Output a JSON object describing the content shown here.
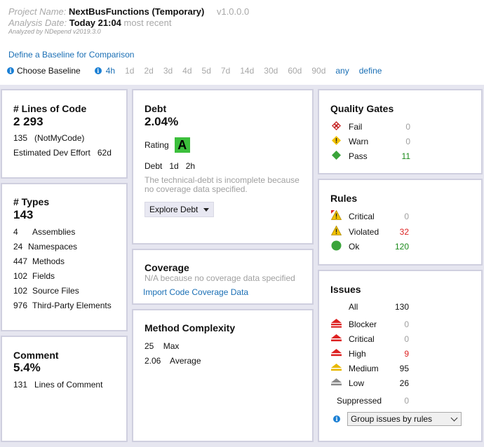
{
  "header": {
    "project_label": "Project Name:",
    "project_name": "NextBusFunctions (Temporary)",
    "version": "v1.0.0.0",
    "date_label": "Analysis Date:",
    "date_value": "Today 21:04",
    "date_suffix": "most recent",
    "analyzed_by": "Analyzed by NDepend v2019.3.0",
    "baseline_link": "Define a Baseline for Comparison",
    "choose_baseline": "Choose Baseline",
    "periods": [
      "4h",
      "1d",
      "2d",
      "3d",
      "4d",
      "5d",
      "7d",
      "14d",
      "30d",
      "60d",
      "90d",
      "any",
      "define"
    ]
  },
  "loc": {
    "title": "# Lines of Code",
    "value": "2 293",
    "notmycode_count": "135",
    "notmycode_label": "(NotMyCode)",
    "effort_label": "Estimated Dev Effort",
    "effort_value": "62d"
  },
  "types": {
    "title": "# Types",
    "value": "143",
    "items": [
      {
        "count": "4",
        "label": "Assemblies"
      },
      {
        "count": "24",
        "label": "Namespaces"
      },
      {
        "count": "447",
        "label": "Methods"
      },
      {
        "count": "102",
        "label": "Fields"
      },
      {
        "count": "102",
        "label": "Source Files"
      },
      {
        "count": "976",
        "label": "Third-Party Elements"
      }
    ]
  },
  "comment": {
    "title": "Comment",
    "value": "5.4%",
    "count": "131",
    "label": "Lines of Comment"
  },
  "debt": {
    "title": "Debt",
    "value": "2.04%",
    "rating_label": "Rating",
    "rating": "A",
    "rating_color": "#3cbf3c",
    "debt_label": "Debt",
    "debt_d": "1d",
    "debt_h": "2h",
    "note": "The technical-debt is incomplete because no coverage data specified.",
    "explore": "Explore Debt"
  },
  "coverage": {
    "title": "Coverage",
    "note": "N/A because no coverage data specified",
    "import_link": "Import Code Coverage Data"
  },
  "complexity": {
    "title": "Method Complexity",
    "max_value": "25",
    "max_label": "Max",
    "avg_value": "2.06",
    "avg_label": "Average"
  },
  "quality_gates": {
    "title": "Quality Gates",
    "fail_label": "Fail",
    "fail_value": "0",
    "warn_label": "Warn",
    "warn_value": "0",
    "pass_label": "Pass",
    "pass_value": "11"
  },
  "rules": {
    "title": "Rules",
    "critical_label": "Critical",
    "critical_value": "0",
    "violated_label": "Violated",
    "violated_value": "32",
    "ok_label": "Ok",
    "ok_value": "120"
  },
  "issues": {
    "title": "Issues",
    "all_label": "All",
    "all_value": "130",
    "blocker_label": "Blocker",
    "blocker_value": "0",
    "critical_label": "Critical",
    "critical_value": "0",
    "high_label": "High",
    "high_value": "9",
    "medium_label": "Medium",
    "medium_value": "95",
    "low_label": "Low",
    "low_value": "26",
    "suppressed_label": "Suppressed",
    "suppressed_value": "0",
    "group_select": "Group issues by rules"
  },
  "colors": {
    "link": "#1a6fb5",
    "red": "#dd2222",
    "green": "#1a8a1a",
    "panel_border": "#cfcfdf",
    "background": "#e6e6f0"
  }
}
